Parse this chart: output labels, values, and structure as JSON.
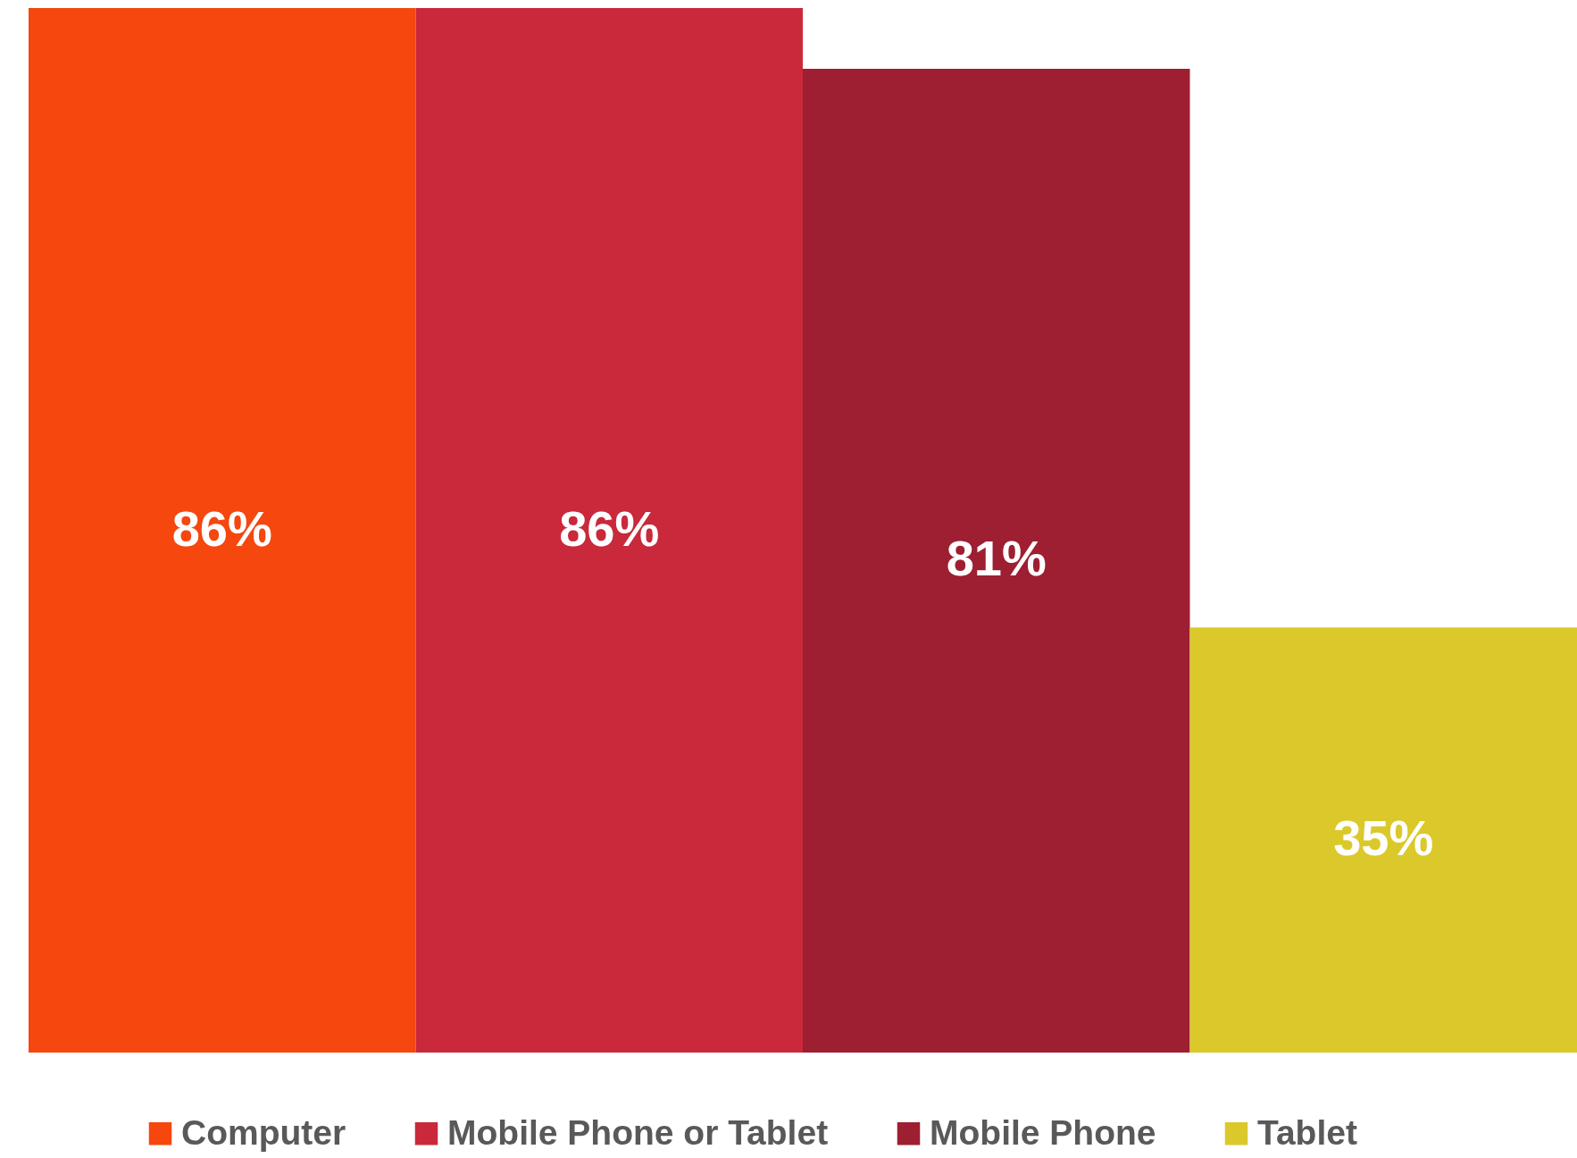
{
  "chart_data": {
    "type": "bar",
    "categories": [
      null
    ],
    "legend": "bottom",
    "series": [
      {
        "name": "Computer",
        "color": "#f5470e",
        "values": [
          86
        ],
        "value_labels": [
          "86%"
        ]
      },
      {
        "name": "Mobile Phone or Tablet",
        "color": "#c9293b",
        "values": [
          86
        ],
        "value_labels": [
          "86%"
        ]
      },
      {
        "name": "Mobile Phone",
        "color": "#9d1f31",
        "values": [
          81
        ],
        "value_labels": [
          "81%"
        ]
      },
      {
        "name": "Tablet",
        "color": "#dbc82b",
        "values": [
          35
        ],
        "value_labels": [
          "35%"
        ]
      }
    ]
  }
}
